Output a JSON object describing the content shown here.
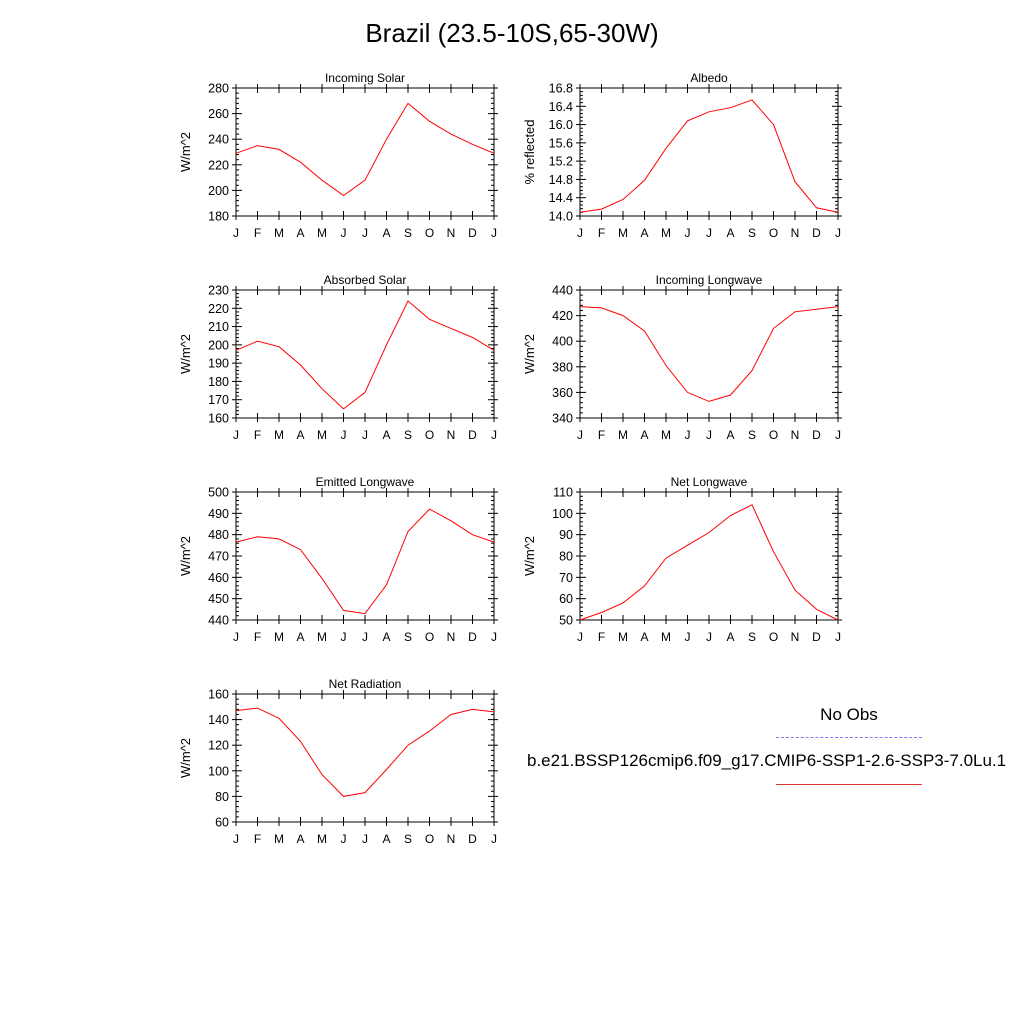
{
  "title": "Brazil (23.5-10S,65-30W)",
  "legend": {
    "obs_label": "No Obs",
    "obs_color": "#7b7bf5",
    "model_label": "b.e21.BSSP126cmip6.f09_g17.CMIP6-SSP1-2.6-SSP3-7.0Lu.1",
    "model_color": "#ff0000"
  },
  "chart_data": [
    {
      "type": "line",
      "title": "Incoming Solar",
      "ylabel": "W/m^2",
      "categories": [
        "J",
        "F",
        "M",
        "A",
        "M",
        "J",
        "J",
        "A",
        "S",
        "O",
        "N",
        "D",
        "J"
      ],
      "ylim": [
        180,
        280
      ],
      "yticks": [
        "180",
        "200",
        "220",
        "240",
        "260",
        "280"
      ],
      "series": [
        {
          "values": [
            229,
            235,
            232,
            222,
            208,
            196,
            208,
            240,
            268,
            254,
            244,
            236,
            229
          ]
        }
      ]
    },
    {
      "type": "line",
      "title": "Albedo",
      "ylabel": "% reflected",
      "categories": [
        "J",
        "F",
        "M",
        "A",
        "M",
        "J",
        "J",
        "A",
        "S",
        "O",
        "N",
        "D",
        "J"
      ],
      "ylim": [
        14.0,
        16.8
      ],
      "yticks": [
        "14.0",
        "14.4",
        "14.8",
        "15.2",
        "15.6",
        "16.0",
        "16.4",
        "16.8"
      ],
      "series": [
        {
          "values": [
            14.08,
            14.15,
            14.36,
            14.78,
            15.48,
            16.08,
            16.28,
            16.37,
            16.54,
            16.0,
            14.75,
            14.18,
            14.08
          ]
        }
      ]
    },
    {
      "type": "line",
      "title": "Absorbed Solar",
      "ylabel": "W/m^2",
      "categories": [
        "J",
        "F",
        "M",
        "A",
        "M",
        "J",
        "J",
        "A",
        "S",
        "O",
        "N",
        "D",
        "J"
      ],
      "ylim": [
        160,
        230
      ],
      "yticks": [
        "160",
        "170",
        "180",
        "190",
        "200",
        "210",
        "220",
        "230"
      ],
      "series": [
        {
          "values": [
            197,
            202,
            199,
            189,
            176,
            165,
            174,
            200,
            224,
            214,
            209,
            204,
            197
          ]
        }
      ]
    },
    {
      "type": "line",
      "title": "Incoming Longwave",
      "ylabel": "W/m^2",
      "categories": [
        "J",
        "F",
        "M",
        "A",
        "M",
        "J",
        "J",
        "A",
        "S",
        "O",
        "N",
        "D",
        "J"
      ],
      "ylim": [
        340,
        440
      ],
      "yticks": [
        "340",
        "360",
        "380",
        "400",
        "420",
        "440"
      ],
      "series": [
        {
          "values": [
            427,
            426,
            420,
            408,
            381,
            360,
            353,
            358,
            377,
            410,
            423,
            425,
            427
          ]
        }
      ]
    },
    {
      "type": "line",
      "title": "Emitted Longwave",
      "ylabel": "W/m^2",
      "categories": [
        "J",
        "F",
        "M",
        "A",
        "M",
        "J",
        "J",
        "A",
        "S",
        "O",
        "N",
        "D",
        "J"
      ],
      "ylim": [
        440,
        500
      ],
      "yticks": [
        "440",
        "450",
        "460",
        "470",
        "480",
        "490",
        "500"
      ],
      "series": [
        {
          "values": [
            476.5,
            479,
            478,
            473,
            459.5,
            444.5,
            443,
            456.5,
            481.5,
            492,
            486.5,
            480,
            476.5
          ]
        }
      ]
    },
    {
      "type": "line",
      "title": "Net Longwave",
      "ylabel": "W/m^2",
      "categories": [
        "J",
        "F",
        "M",
        "A",
        "M",
        "J",
        "J",
        "A",
        "S",
        "O",
        "N",
        "D",
        "J"
      ],
      "ylim": [
        50,
        110
      ],
      "yticks": [
        "50",
        "60",
        "70",
        "80",
        "90",
        "100",
        "110"
      ],
      "series": [
        {
          "values": [
            50,
            53.5,
            58,
            66,
            79,
            85,
            91,
            99,
            104,
            82,
            64,
            55,
            50
          ]
        }
      ]
    },
    {
      "type": "line",
      "title": "Net Radiation",
      "ylabel": "W/m^2",
      "categories": [
        "J",
        "F",
        "M",
        "A",
        "M",
        "J",
        "J",
        "A",
        "S",
        "O",
        "N",
        "D",
        "J"
      ],
      "ylim": [
        60,
        160
      ],
      "yticks": [
        "60",
        "80",
        "100",
        "120",
        "140",
        "160"
      ],
      "series": [
        {
          "values": [
            147,
            149,
            141,
            123,
            97,
            80,
            83,
            101,
            120,
            131,
            144,
            148,
            146
          ]
        }
      ]
    }
  ]
}
